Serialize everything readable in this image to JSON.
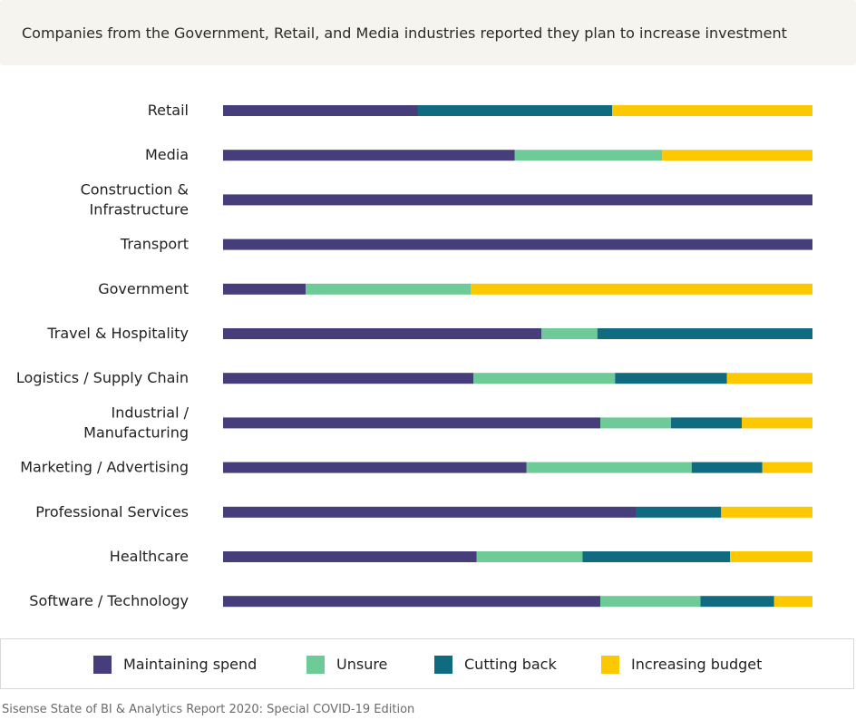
{
  "title": "Companies from the Government, Retail, and Media industries reported they plan to increase investment",
  "source": "Sisense State of BI & Analytics Report 2020: Special COVID-19 Edition",
  "colors": {
    "maintaining": "#463e7a",
    "unsure": "#6ecb98",
    "cutting": "#106a80",
    "increasing": "#fcc800"
  },
  "chart_data": {
    "type": "bar",
    "orientation": "horizontal",
    "stacked": true,
    "normalized": true,
    "grid": false,
    "legend_placement": "bottom",
    "categories": [
      [
        "Retail"
      ],
      [
        "Media"
      ],
      [
        "Construction &",
        "Infrastructure"
      ],
      [
        "Transport"
      ],
      [
        "Government"
      ],
      [
        "Travel & Hospitality"
      ],
      [
        "Logistics / Supply Chain"
      ],
      [
        "Industrial /",
        "Manufacturing"
      ],
      [
        "Marketing / Advertising"
      ],
      [
        "Professional Services"
      ],
      [
        "Healthcare"
      ],
      [
        "Software / Technology"
      ]
    ],
    "series": [
      {
        "name": "Maintaining spend",
        "color_key": "maintaining",
        "values": [
          33,
          49.5,
          100,
          100,
          14,
          54,
          42.5,
          64,
          51.5,
          70,
          43,
          64
        ]
      },
      {
        "name": "Unsure",
        "color_key": "unsure",
        "values": [
          0,
          25,
          0,
          0,
          28,
          9.5,
          24,
          12,
          28,
          0,
          18,
          17
        ]
      },
      {
        "name": "Cutting back",
        "color_key": "cutting",
        "values": [
          33,
          0,
          0,
          0,
          0,
          36.5,
          19,
          12,
          12,
          14.5,
          25,
          12.5
        ]
      },
      {
        "name": "Increasing budget",
        "color_key": "increasing",
        "values": [
          34,
          25.5,
          0,
          0,
          58,
          0,
          14.5,
          12,
          8.5,
          15.5,
          14,
          6.5
        ]
      }
    ]
  }
}
